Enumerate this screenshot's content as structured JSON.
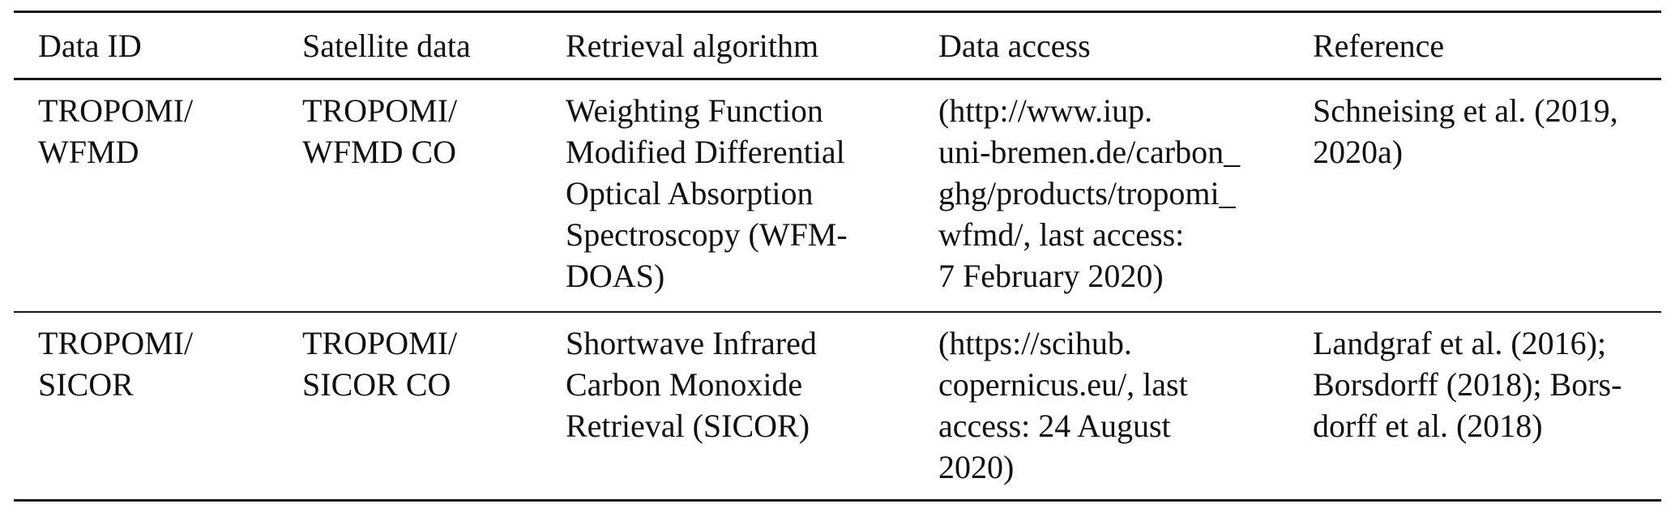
{
  "table": {
    "title": "satellite-co-products-table",
    "columns": [
      {
        "label": "Data ID"
      },
      {
        "label": "Satellite data"
      },
      {
        "label": "Retrieval algorithm"
      },
      {
        "label": "Data access"
      },
      {
        "label": "Reference"
      }
    ],
    "rows": [
      {
        "cells": [
          {
            "text": "TROPOMI/\nWFMD"
          },
          {
            "text": "TROPOMI/\nWFMD CO"
          },
          {
            "text": "Weighting Function\nModified Differential\nOptical Absorption\nSpectroscopy (WFM-\nDOAS)"
          },
          {
            "text": "(http://www.iup.\nuni-bremen.de/carbon_\nghg/products/tropomi_\nwfmd/, last access:\n7 February 2020)"
          },
          {
            "text": "Schneising et al. (2019,\n2020a)"
          }
        ]
      },
      {
        "cells": [
          {
            "text": "TROPOMI/\nSICOR"
          },
          {
            "text": "TROPOMI/\nSICOR CO"
          },
          {
            "text": "Shortwave Infrared\nCarbon Monoxide\nRetrieval (SICOR)"
          },
          {
            "text": "(https://scihub.\ncopernicus.eu/, last\naccess: 24 August\n2020)"
          },
          {
            "text": "Landgraf et al. (2016);\nBorsdorff (2018); Bors-\ndorff et al. (2018)"
          }
        ]
      }
    ],
    "colors": {
      "text": "#111111",
      "rule": "#161616",
      "background": "#ffffff"
    }
  }
}
